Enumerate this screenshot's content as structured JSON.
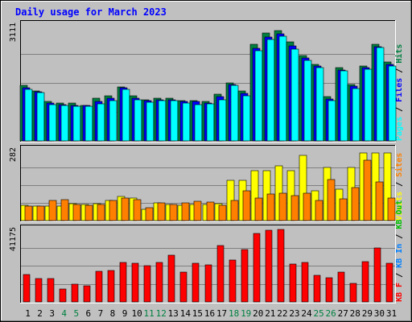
{
  "chart_data": {
    "type": "bar",
    "title": "Daily usage for March 2023",
    "categories": [
      "1",
      "2",
      "3",
      "4",
      "5",
      "6",
      "7",
      "8",
      "9",
      "10",
      "11",
      "12",
      "13",
      "14",
      "15",
      "16",
      "17",
      "18",
      "19",
      "20",
      "21",
      "22",
      "23",
      "24",
      "25",
      "26",
      "27",
      "28",
      "29",
      "30",
      "31"
    ],
    "weekend_days": [
      "4",
      "5",
      "11",
      "12",
      "18",
      "19",
      "25",
      "26"
    ],
    "panels": [
      {
        "id": "pages_files_hits",
        "ymax_label": "3111",
        "ylim": [
          0,
          3111
        ],
        "axis_labels": [
          "Pages",
          "/",
          "Files",
          "/",
          "Hits"
        ],
        "series": [
          {
            "name": "Hits",
            "color": "#008040",
            "values": [
              1500,
              1330,
              1060,
              1010,
              1010,
              960,
              1140,
              1220,
              1440,
              1210,
              1100,
              1150,
              1150,
              1070,
              1070,
              1050,
              1250,
              1560,
              1330,
              2590,
              2890,
              2960,
              2650,
              2300,
              2060,
              1180,
              1970,
              1520,
              2010,
              2590,
              2110
            ]
          },
          {
            "name": "Files",
            "color": "#0000ff",
            "values": [
              1430,
              1320,
              1010,
              980,
              960,
              940,
              1060,
              1140,
              1420,
              1150,
              1080,
              1110,
              1110,
              1050,
              1050,
              1020,
              1180,
              1520,
              1280,
              2480,
              2790,
              2870,
              2540,
              2230,
              2010,
              1130,
              1910,
              1460,
              1960,
              2520,
              2050
            ]
          },
          {
            "name": "Pages",
            "color": "#00ffff",
            "values": [
              1380,
              1300,
              980,
              960,
              930,
              920,
              1000,
              1080,
              1380,
              1110,
              1040,
              1070,
              1070,
              1010,
              970,
              990,
              1110,
              1480,
              1220,
              2410,
              2720,
              2800,
              2460,
              2170,
              1960,
              1070,
              1880,
              1400,
              1920,
              2500,
              2000
            ]
          }
        ]
      },
      {
        "id": "visits_sites",
        "ymax_label": "282",
        "ylim": [
          0,
          282
        ],
        "axis_labels": [
          "Visits",
          "/",
          "Sites"
        ],
        "series": [
          {
            "name": "Visits",
            "color": "#ffff00",
            "values": [
              62,
              58,
              58,
              58,
              68,
              64,
              68,
              80,
              95,
              90,
              46,
              70,
              64,
              62,
              65,
              65,
              67,
              160,
              160,
              200,
              200,
              218,
              200,
              260,
              120,
              210,
              125,
              212,
              270,
              270,
              268
            ]
          },
          {
            "name": "Sites",
            "color": "#ff8000",
            "values": [
              58,
              57,
              80,
              83,
              63,
              62,
              64,
              80,
              91,
              84,
              52,
              70,
              65,
              70,
              78,
              75,
              60,
              80,
              120,
              90,
              105,
              110,
              100,
              110,
              80,
              165,
              85,
              130,
              240,
              155,
              90
            ]
          }
        ]
      },
      {
        "id": "kbytes",
        "ymax_label": "41175",
        "ylim": [
          0,
          41175
        ],
        "axis_labels": [
          "KB F",
          "/",
          "KB In",
          "/",
          "KB Out"
        ],
        "series": [
          {
            "name": "KB F",
            "color": "#ff0000",
            "values": [
              15500,
              13200,
              13200,
              7100,
              10000,
              9200,
              17200,
              17800,
              22400,
              21800,
              20600,
              22600,
              26600,
              17000,
              21800,
              21000,
              32200,
              24000,
              29600,
              38800,
              40600,
              41175,
              21600,
              22600,
              15300,
              13800,
              17000,
              10500,
              23000,
              30600,
              21800
            ]
          }
        ]
      }
    ]
  }
}
